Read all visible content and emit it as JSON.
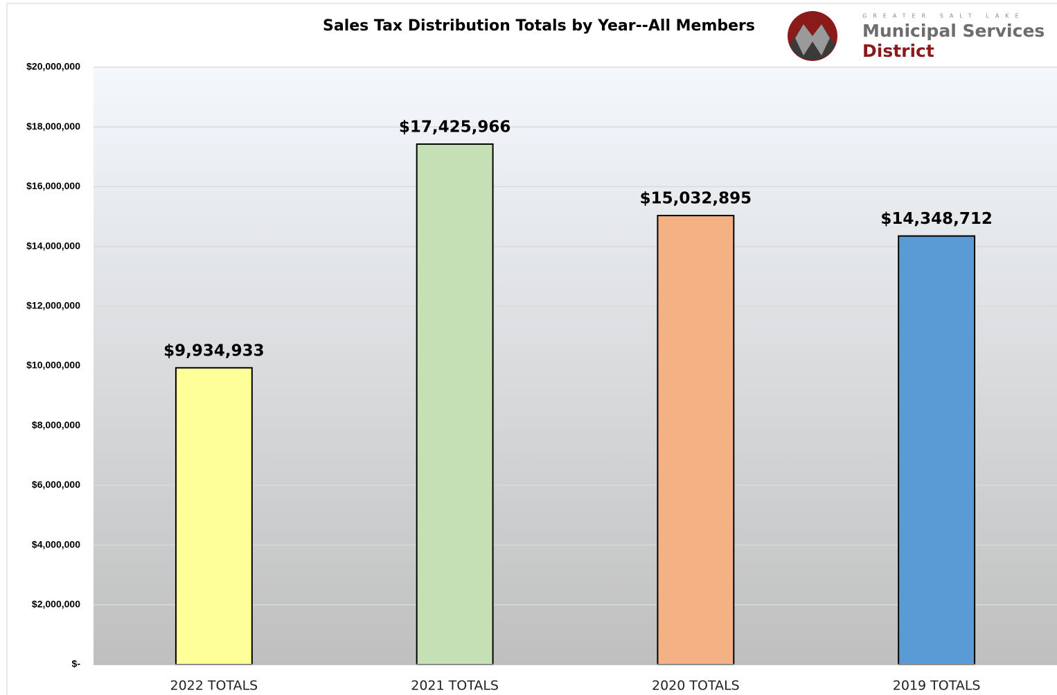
{
  "chart_data": {
    "type": "bar",
    "title": "Sales Tax Distribution Totals by Year--All Members",
    "categories": [
      "2022 TOTALS",
      "2021 TOTALS",
      "2020 TOTALS",
      "2019 TOTALS"
    ],
    "values": [
      9934933,
      17425966,
      15032895,
      14348712
    ],
    "value_labels": [
      "$9,934,933",
      "$17,425,966",
      "$15,032,895",
      "$14,348,712"
    ],
    "colors": [
      "#ffff99",
      "#c5e0b4",
      "#f4b183",
      "#5b9bd5"
    ],
    "ylim": [
      0,
      20000000
    ],
    "yticks": [
      {
        "value": 0,
        "label": "$-"
      },
      {
        "value": 2000000,
        "label": "$2,000,000"
      },
      {
        "value": 4000000,
        "label": "$4,000,000"
      },
      {
        "value": 6000000,
        "label": "$6,000,000"
      },
      {
        "value": 8000000,
        "label": "$8,000,000"
      },
      {
        "value": 10000000,
        "label": "$10,000,000"
      },
      {
        "value": 12000000,
        "label": "$12,000,000"
      },
      {
        "value": 14000000,
        "label": "$14,000,000"
      },
      {
        "value": 16000000,
        "label": "$16,000,000"
      },
      {
        "value": 18000000,
        "label": "$18,000,000"
      },
      {
        "value": 20000000,
        "label": "$20,000,000"
      }
    ],
    "grid": true
  },
  "logo": {
    "tagline": "GREATER SALT LAKE",
    "line1": "Municipal Services",
    "line2": "District"
  }
}
